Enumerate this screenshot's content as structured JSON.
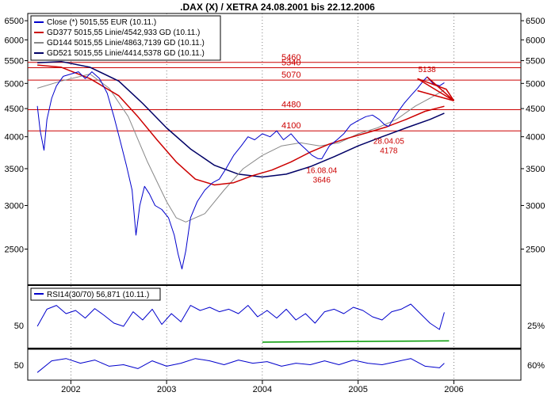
{
  "chart_data": [
    {
      "type": "line",
      "title": ".DAX (X) / XETRA 24.08.2001 bis 22.12.2006",
      "x_axis_labels": [
        "2002",
        "2003",
        "2004",
        "2005",
        "2006"
      ],
      "y_axis_labels": [
        "2500",
        "3000",
        "3500",
        "4000",
        "4500",
        "5000",
        "5500",
        "6000",
        "6500"
      ],
      "y_scale": "log",
      "ylim": [
        2150,
        6700
      ],
      "legend": [
        {
          "label": "Close (*) 5015,55 EUR (10.11.)",
          "color": "#0000cc"
        },
        {
          "label": "GD377 5015,55 Linie/4542,933 GD (10.11.)",
          "color": "#cc0000"
        },
        {
          "label": "GD144 5015,55 Linie/4863,7139 GD (10.11.)",
          "color": "#888888"
        },
        {
          "label": "GD521 5015,55 Linie/4414,5378 GD (10.11.)",
          "color": "#000066"
        }
      ],
      "horizontal_lines": [
        {
          "value": 5460,
          "label": "5460"
        },
        {
          "value": 5340,
          "label": "5340"
        },
        {
          "value": 5070,
          "label": "5070"
        },
        {
          "value": 4480,
          "label": "4480"
        },
        {
          "value": 4100,
          "label": "4100"
        }
      ],
      "annotations": [
        {
          "label": "5138",
          "x": 2005.72,
          "y": 5138
        },
        {
          "label": "16.08.04",
          "x": 2004.62,
          "y": 3646
        },
        {
          "label": "3646",
          "x": 2004.62,
          "y": 3646
        },
        {
          "label": "28.04.05",
          "x": 2005.32,
          "y": 4178
        },
        {
          "label": "4178",
          "x": 2005.32,
          "y": 4178
        }
      ],
      "series": [
        {
          "name": "Close",
          "color": "#0000cc",
          "x": [
            2001.65,
            2001.68,
            2001.72,
            2001.75,
            2001.8,
            2001.85,
            2001.92,
            2002.0,
            2002.08,
            2002.15,
            2002.22,
            2002.3,
            2002.38,
            2002.45,
            2002.52,
            2002.58,
            2002.64,
            2002.68,
            2002.72,
            2002.77,
            2002.82,
            2002.88,
            2002.95,
            2003.02,
            2003.08,
            2003.12,
            2003.16,
            2003.2,
            2003.25,
            2003.32,
            2003.4,
            2003.48,
            2003.55,
            2003.62,
            2003.7,
            2003.78,
            2003.85,
            2003.92,
            2004.0,
            2004.08,
            2004.15,
            2004.22,
            2004.3,
            2004.38,
            2004.45,
            2004.52,
            2004.58,
            2004.62,
            2004.7,
            2004.78,
            2004.85,
            2004.92,
            2005.0,
            2005.08,
            2005.15,
            2005.22,
            2005.28,
            2005.32,
            2005.4,
            2005.48,
            2005.55,
            2005.62,
            2005.68,
            2005.72,
            2005.78,
            2005.85,
            2005.9
          ],
          "values": [
            4550,
            4100,
            3780,
            4300,
            4700,
            4950,
            5150,
            5200,
            5250,
            5100,
            5250,
            5100,
            4800,
            4350,
            3900,
            3550,
            3200,
            2650,
            3000,
            3250,
            3150,
            3000,
            2950,
            2850,
            2650,
            2450,
            2300,
            2480,
            2850,
            3050,
            3200,
            3300,
            3350,
            3500,
            3700,
            3850,
            4000,
            3950,
            4050,
            4000,
            4100,
            3950,
            4050,
            3900,
            3800,
            3700,
            3650,
            3646,
            3850,
            3950,
            4050,
            4200,
            4280,
            4350,
            4380,
            4300,
            4200,
            4178,
            4400,
            4600,
            4750,
            4900,
            5050,
            5138,
            5000,
            4950,
            5015
          ]
        },
        {
          "name": "GD377",
          "color": "#cc0000",
          "x": [
            2001.65,
            2001.9,
            2002.2,
            2002.5,
            2002.7,
            2002.9,
            2003.1,
            2003.3,
            2003.5,
            2003.7,
            2003.9,
            2004.1,
            2004.3,
            2004.5,
            2004.7,
            2004.9,
            2005.1,
            2005.3,
            2005.5,
            2005.7,
            2005.9
          ],
          "values": [
            5400,
            5350,
            5100,
            4750,
            4350,
            3950,
            3600,
            3350,
            3270,
            3300,
            3400,
            3480,
            3600,
            3750,
            3880,
            3980,
            4070,
            4170,
            4300,
            4450,
            4543
          ]
        },
        {
          "name": "GD144",
          "color": "#888888",
          "x": [
            2001.65,
            2001.9,
            2002.2,
            2002.4,
            2002.6,
            2002.8,
            2003.0,
            2003.1,
            2003.2,
            2003.4,
            2003.6,
            2003.8,
            2004.0,
            2004.2,
            2004.4,
            2004.6,
            2004.8,
            2005.0,
            2005.2,
            2005.4,
            2005.6,
            2005.75,
            2005.9
          ],
          "values": [
            4900,
            5050,
            5200,
            4900,
            4350,
            3600,
            3050,
            2850,
            2800,
            2900,
            3200,
            3500,
            3700,
            3850,
            3900,
            3850,
            3900,
            4050,
            4150,
            4300,
            4550,
            4700,
            4864
          ]
        },
        {
          "name": "GD521",
          "color": "#000066",
          "x": [
            2001.65,
            2001.9,
            2002.2,
            2002.5,
            2002.75,
            2003.0,
            2003.25,
            2003.5,
            2003.75,
            2004.0,
            2004.25,
            2004.5,
            2004.75,
            2005.0,
            2005.25,
            2005.5,
            2005.75,
            2005.9
          ],
          "values": [
            5450,
            5480,
            5350,
            5050,
            4600,
            4150,
            3800,
            3550,
            3420,
            3380,
            3420,
            3530,
            3680,
            3850,
            4000,
            4150,
            4300,
            4415
          ]
        }
      ]
    },
    {
      "type": "line",
      "title": "",
      "legend": [
        {
          "label": "RSI14(30/70) 56,871 (10.11.)",
          "color": "#0000cc"
        }
      ],
      "y_axis_labels_left": [
        "50"
      ],
      "y_axis_labels_right": [
        "25%"
      ],
      "series": [
        {
          "name": "RSI14(30/70)",
          "color": "#0000cc",
          "x": [
            2001.65,
            2001.75,
            2001.85,
            2001.95,
            2002.05,
            2002.15,
            2002.25,
            2002.35,
            2002.45,
            2002.55,
            2002.65,
            2002.75,
            2002.85,
            2002.95,
            2003.05,
            2003.15,
            2003.25,
            2003.35,
            2003.45,
            2003.55,
            2003.65,
            2003.75,
            2003.85,
            2003.95,
            2004.05,
            2004.15,
            2004.25,
            2004.35,
            2004.45,
            2004.55,
            2004.65,
            2004.75,
            2004.85,
            2004.95,
            2005.05,
            2005.15,
            2005.25,
            2005.35,
            2005.45,
            2005.55,
            2005.65,
            2005.75,
            2005.85,
            2005.9
          ],
          "values": [
            35,
            62,
            68,
            55,
            60,
            48,
            63,
            52,
            40,
            35,
            58,
            45,
            62,
            38,
            55,
            42,
            68,
            60,
            65,
            58,
            62,
            55,
            68,
            50,
            60,
            48,
            62,
            45,
            55,
            40,
            58,
            62,
            55,
            65,
            60,
            50,
            45,
            58,
            62,
            70,
            55,
            40,
            30,
            57
          ]
        }
      ]
    },
    {
      "type": "line",
      "title": "",
      "y_axis_labels_left": [
        "50"
      ],
      "y_axis_labels_right": [
        "60%"
      ],
      "series": [
        {
          "name": "oscillator",
          "color": "#0000cc",
          "x": [
            2001.65,
            2001.8,
            2001.95,
            2002.1,
            2002.25,
            2002.4,
            2002.55,
            2002.7,
            2002.85,
            2003.0,
            2003.15,
            2003.3,
            2003.45,
            2003.6,
            2003.75,
            2003.9,
            2004.05,
            2004.2,
            2004.35,
            2004.5,
            2004.65,
            2004.8,
            2004.95,
            2005.1,
            2005.25,
            2005.4,
            2005.55,
            2005.7,
            2005.85,
            2005.9
          ],
          "values": [
            40,
            55,
            58,
            52,
            56,
            48,
            50,
            45,
            55,
            48,
            52,
            58,
            55,
            50,
            56,
            52,
            54,
            48,
            52,
            50,
            55,
            50,
            56,
            52,
            50,
            54,
            58,
            48,
            46,
            52
          ]
        }
      ]
    }
  ]
}
